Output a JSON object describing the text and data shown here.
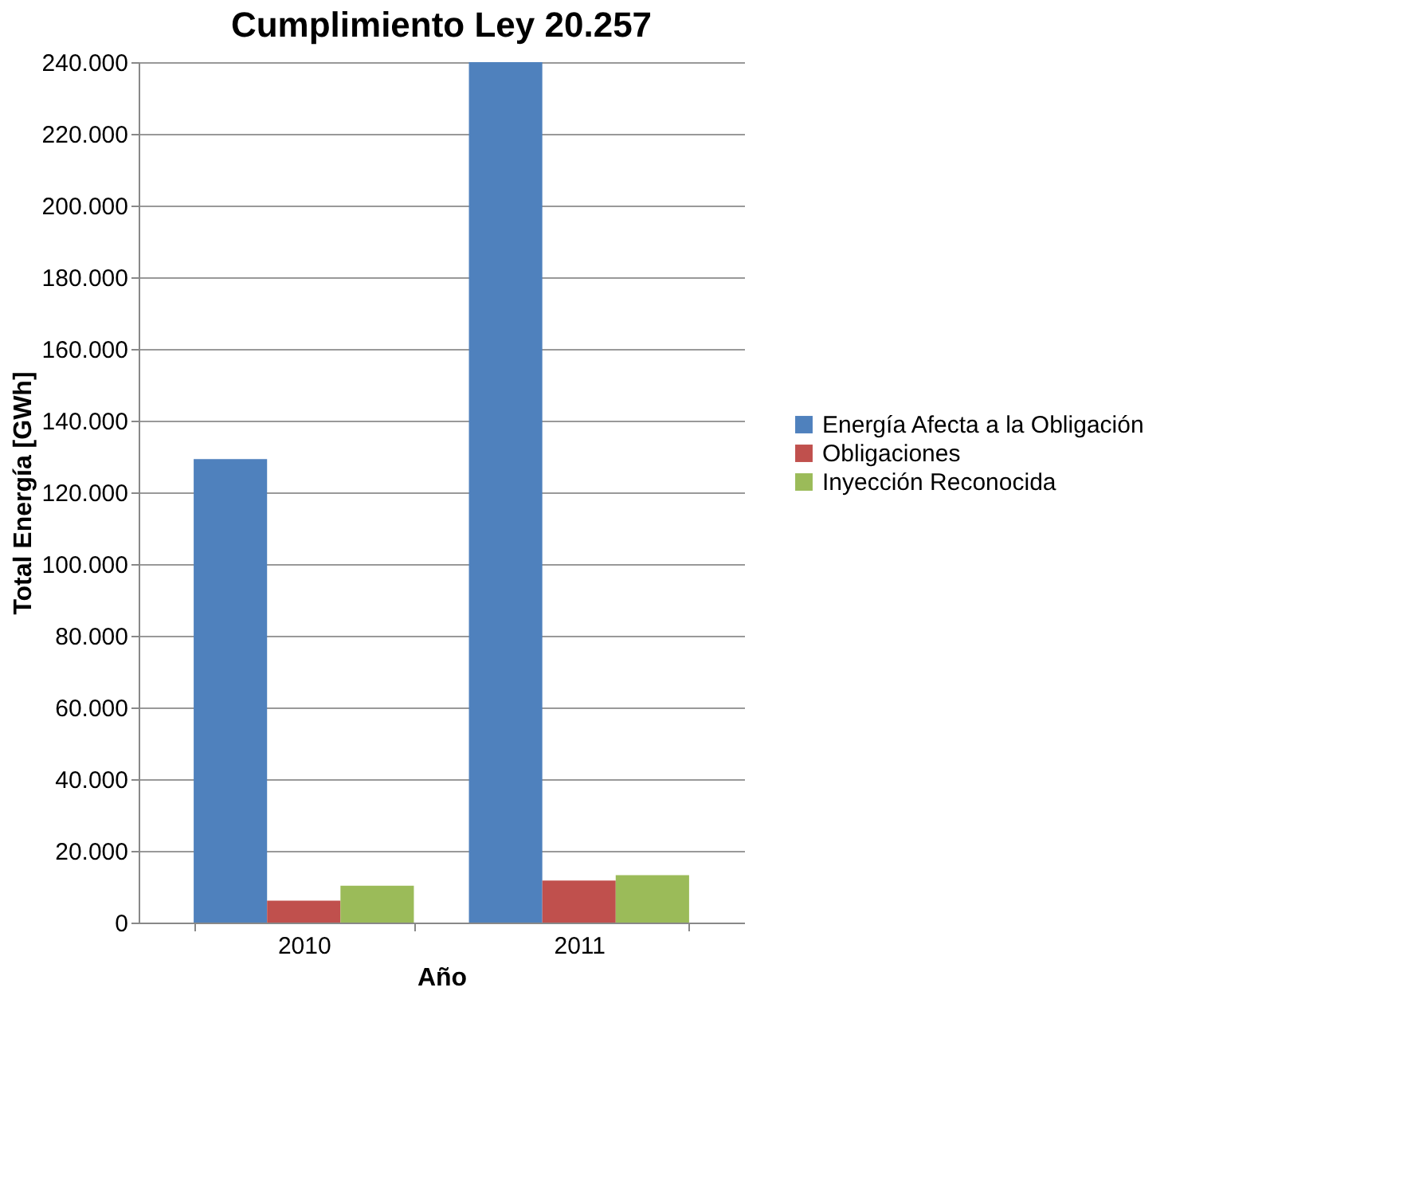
{
  "chart_data": {
    "type": "bar",
    "title": "Cumplimiento Ley 20.257",
    "xlabel": "Año",
    "ylabel": "Total Energía [GWh]",
    "categories": [
      "2010",
      "2011"
    ],
    "series": [
      {
        "name": "Energía Afecta a la Obligación",
        "color": "#4f81bd",
        "values": [
          129300,
          240000
        ]
      },
      {
        "name": "Obligaciones",
        "color": "#c0504d",
        "values": [
          6100,
          11700
        ]
      },
      {
        "name": "Inyección Reconocida",
        "color": "#9bbb59",
        "values": [
          10300,
          13200
        ]
      }
    ],
    "ylim": [
      0,
      240000
    ],
    "yticks": [
      0,
      {
        "value": 20000,
        "label": "20.000"
      },
      {
        "value": 40000,
        "label": "40.000"
      },
      {
        "value": 60000,
        "label": "60.000"
      },
      {
        "value": 80000,
        "label": "80.000"
      },
      {
        "value": 100000,
        "label": "100.000"
      },
      {
        "value": 120000,
        "label": "120.000"
      },
      {
        "value": 140000,
        "label": "140.000"
      },
      {
        "value": 160000,
        "label": "160.000"
      },
      {
        "value": 180000,
        "label": "180.000"
      },
      {
        "value": 200000,
        "label": "200.000"
      },
      {
        "value": 220000,
        "label": "220.000"
      },
      {
        "value": 240000,
        "label": "240.000"
      }
    ],
    "grid": "y",
    "legend": "right"
  }
}
